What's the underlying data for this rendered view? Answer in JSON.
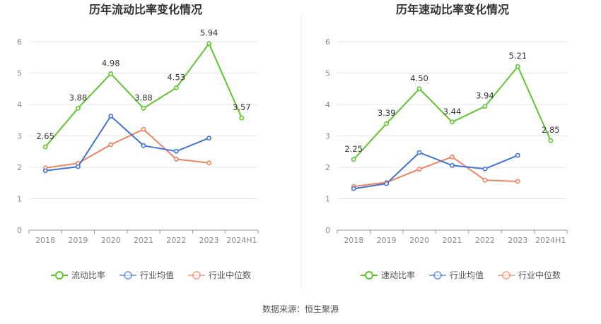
{
  "colors": {
    "main": "#5dc72c",
    "avg": "#3f73d9",
    "median": "#ee845f"
  },
  "source": "数据来源：恒生聚源",
  "chart_data": [
    {
      "type": "line",
      "title": "历年流动比率变化情况",
      "categories": [
        "2018",
        "2019",
        "2020",
        "2021",
        "2022",
        "2023",
        "2024H1"
      ],
      "ylim": [
        0,
        6
      ],
      "yticks": [
        0,
        1,
        2,
        3,
        4,
        5,
        6
      ],
      "series": [
        {
          "name": "流动比率",
          "key": "main",
          "labeled": true,
          "values": [
            2.65,
            3.88,
            4.98,
            3.88,
            4.53,
            5.94,
            3.57
          ]
        },
        {
          "name": "行业均值",
          "key": "avg",
          "labeled": false,
          "values": [
            1.89,
            2.02,
            3.63,
            2.69,
            2.51,
            2.93,
            null
          ]
        },
        {
          "name": "行业中位数",
          "key": "median",
          "labeled": false,
          "values": [
            1.98,
            2.13,
            2.72,
            3.21,
            2.26,
            2.14,
            null
          ]
        }
      ]
    },
    {
      "type": "line",
      "title": "历年速动比率变化情况",
      "categories": [
        "2018",
        "2019",
        "2020",
        "2021",
        "2022",
        "2023",
        "2024H1"
      ],
      "ylim": [
        0,
        6
      ],
      "yticks": [
        0,
        1,
        2,
        3,
        4,
        5,
        6
      ],
      "series": [
        {
          "name": "速动比率",
          "key": "main",
          "labeled": true,
          "values": [
            2.25,
            3.39,
            4.5,
            3.44,
            3.94,
            5.21,
            2.85
          ]
        },
        {
          "name": "行业均值",
          "key": "avg",
          "labeled": false,
          "values": [
            1.32,
            1.48,
            2.47,
            2.06,
            1.95,
            2.38,
            null
          ]
        },
        {
          "name": "行业中位数",
          "key": "median",
          "labeled": false,
          "values": [
            1.39,
            1.52,
            1.94,
            2.33,
            1.59,
            1.55,
            null
          ]
        }
      ]
    }
  ]
}
